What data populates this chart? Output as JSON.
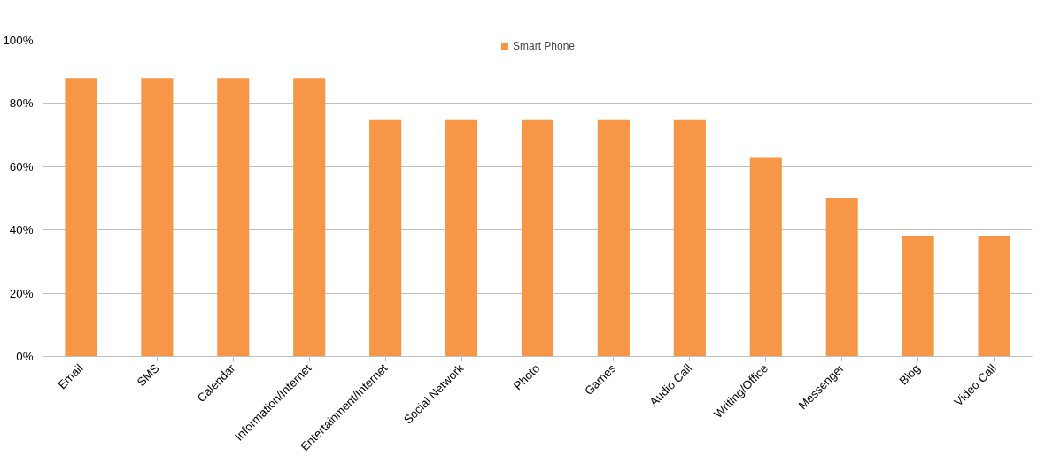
{
  "chart_data": {
    "type": "bar",
    "categories": [
      "Email",
      "SMS",
      "Calendar",
      "Information/Internet",
      "Entertainment/Internet",
      "Social Network",
      "Photo",
      "Games",
      "Audio Call",
      "Writing/Office",
      "Messenger",
      "Blog",
      "Video Call"
    ],
    "series": [
      {
        "name": "Smart Phone",
        "color": "#f79646",
        "values": [
          88,
          88,
          88,
          88,
          75,
          75,
          75,
          75,
          75,
          63,
          50,
          38,
          38
        ]
      }
    ],
    "ylim": [
      0,
      100
    ],
    "yticks": [
      {
        "value": 0,
        "label": "0%"
      },
      {
        "value": 20,
        "label": "20%"
      },
      {
        "value": 40,
        "label": "40%"
      },
      {
        "value": 60,
        "label": "60%"
      },
      {
        "value": 80,
        "label": "80%"
      },
      {
        "value": 100,
        "label": "100%"
      }
    ],
    "grid": "y",
    "legend": "top"
  }
}
